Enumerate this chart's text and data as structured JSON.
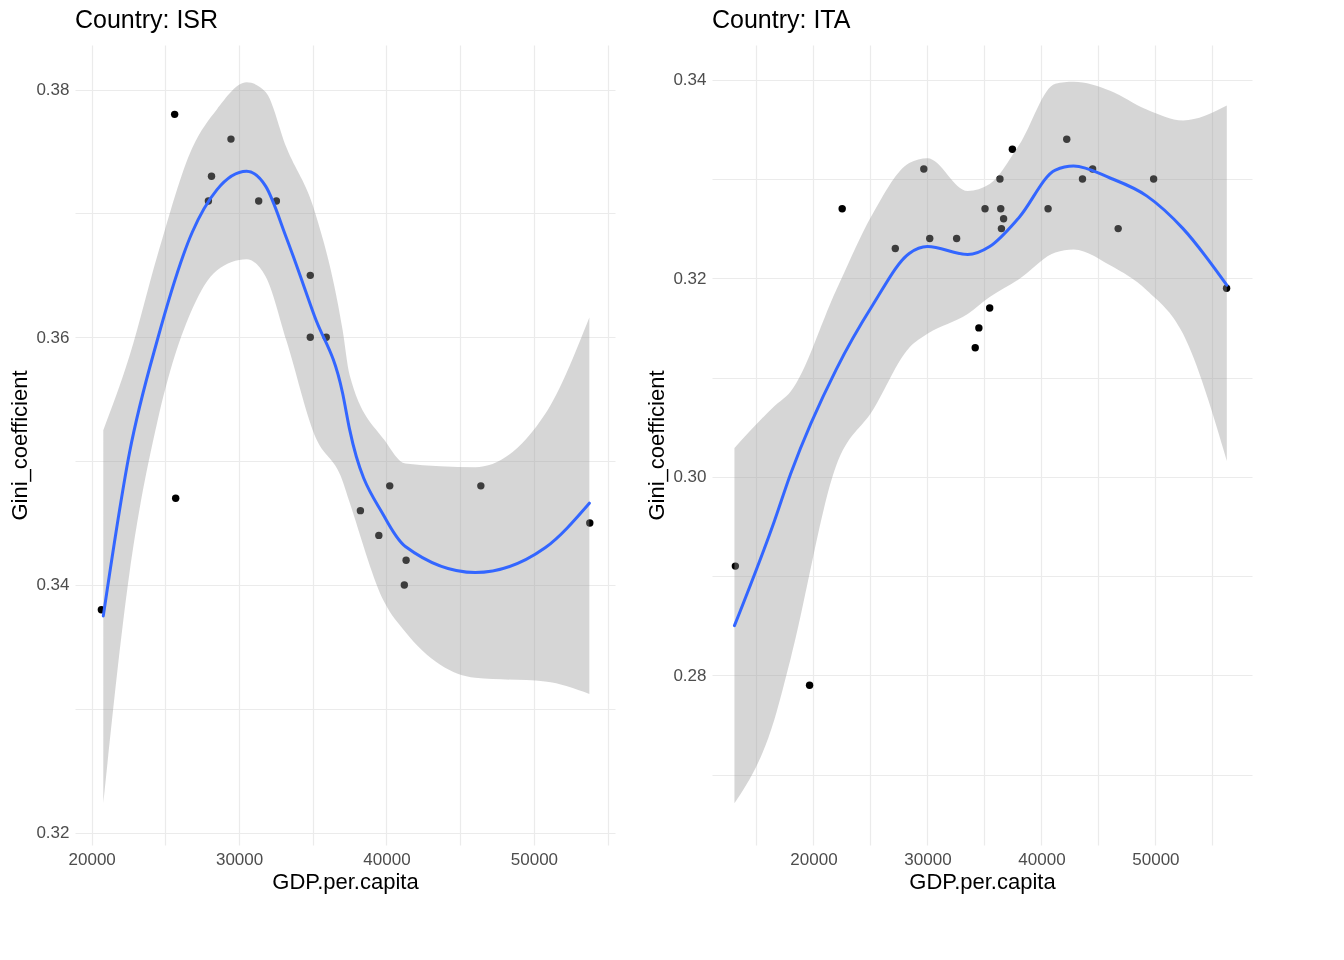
{
  "chart_data": [
    {
      "type": "scatter",
      "title": "Country: ISR",
      "xlabel": "GDP.per.capita",
      "ylabel": "Gini_coefficient",
      "grid": true,
      "xlim": [
        18870,
        55500
      ],
      "xticks": [
        20000,
        {
          "value": 25000,
          "label": null
        },
        30000,
        {
          "value": 35000,
          "label": null
        },
        40000,
        {
          "value": 45000,
          "label": null
        },
        50000,
        {
          "value": 55000,
          "label": null
        }
      ],
      "ylim": [
        0.319,
        0.3836
      ],
      "yticks": [
        0.32,
        {
          "value": 0.33,
          "label": null
        },
        0.34,
        {
          "value": 0.35,
          "label": null
        },
        0.36,
        {
          "value": 0.37,
          "label": null
        },
        0.38
      ],
      "series": [
        {
          "type": "scatter",
          "color": "#000000",
          "x": [
            20660,
            25630,
            25700,
            27920,
            28130,
            29450,
            31330,
            32530,
            34830,
            34830,
            35910,
            38230,
            39480,
            40220,
            41210,
            41330,
            46400,
            53790
          ],
          "values": [
            0.338,
            0.378,
            0.347,
            0.371,
            0.373,
            0.376,
            0.371,
            0.371,
            0.365,
            0.36,
            0.36,
            0.346,
            0.344,
            0.348,
            0.34,
            0.342,
            0.348,
            0.345
          ]
        },
        {
          "type": "line",
          "color": "#3366ff",
          "x": [
            20790,
            22570,
            24460,
            26830,
            28490,
            30510,
            31800,
            33220,
            35120,
            37020,
            37490,
            39860,
            41280,
            46020,
            50760,
            53760
          ],
          "values": [
            0.3375,
            0.3507,
            0.3598,
            0.3685,
            0.3719,
            0.3734,
            0.3722,
            0.368,
            0.3617,
            0.3555,
            0.3526,
            0.3455,
            0.3431,
            0.341,
            0.343,
            0.3466
          ],
          "lower": [
            0.3224,
            0.341,
            0.3532,
            0.3623,
            0.3654,
            0.3663,
            0.3649,
            0.3597,
            0.3521,
            0.3484,
            0.3467,
            0.3386,
            0.3362,
            0.3325,
            0.3322,
            0.3312
          ],
          "upper": [
            0.3525,
            0.3585,
            0.3666,
            0.3753,
            0.3784,
            0.3806,
            0.3798,
            0.3753,
            0.3702,
            0.3606,
            0.357,
            0.3517,
            0.3498,
            0.3495,
            0.3538,
            0.3616
          ]
        }
      ]
    },
    {
      "type": "scatter",
      "title": "Country: ITA",
      "xlabel": "GDP.per.capita",
      "ylabel": "Gini_coefficient",
      "grid": true,
      "xlim": [
        11100,
        58470
      ],
      "xticks": [
        {
          "value": 15000,
          "label": null
        },
        20000,
        {
          "value": 25000,
          "label": null
        },
        30000,
        {
          "value": 35000,
          "label": null
        },
        40000,
        {
          "value": 45000,
          "label": null
        },
        50000,
        {
          "value": 55000,
          "label": null
        }
      ],
      "ylim": [
        0.2629,
        0.3435
      ],
      "yticks": [
        {
          "value": 0.27,
          "label": null
        },
        0.28,
        {
          "value": 0.29,
          "label": null
        },
        {
          "value": 0.3,
          "label": "0.30"
        },
        {
          "value": 0.31,
          "label": null
        },
        0.32,
        {
          "value": 0.33,
          "label": null
        },
        0.34
      ],
      "series": [
        {
          "type": "scatter",
          "color": "#000000",
          "x": [
            13150,
            19660,
            22520,
            27180,
            29680,
            30200,
            32560,
            34190,
            34510,
            35050,
            35460,
            36360,
            36430,
            36490,
            36680,
            37450,
            40580,
            42220,
            43600,
            44490,
            46730,
            49840,
            56240
          ],
          "values": [
            0.291,
            0.279,
            0.327,
            0.323,
            0.331,
            0.324,
            0.324,
            0.313,
            0.315,
            0.327,
            0.317,
            0.33,
            0.327,
            0.325,
            0.326,
            0.333,
            0.327,
            0.334,
            0.33,
            0.331,
            0.325,
            0.33,
            0.319
          ]
        },
        {
          "type": "line",
          "color": "#3366ff",
          "x": [
            13070,
            16560,
            18000,
            21990,
            25200,
            28400,
            30000,
            33530,
            35460,
            38020,
            41220,
            42820,
            46020,
            49230,
            52420,
            56260
          ],
          "values": [
            0.285,
            0.2955,
            0.3003,
            0.3108,
            0.3173,
            0.3225,
            0.3232,
            0.3224,
            0.3232,
            0.3261,
            0.3309,
            0.3313,
            0.3301,
            0.3283,
            0.325,
            0.3193
          ],
          "lower": [
            0.2671,
            0.2755,
            0.2817,
            0.3011,
            0.3067,
            0.313,
            0.3144,
            0.3164,
            0.3181,
            0.3199,
            0.3226,
            0.3229,
            0.3213,
            0.3188,
            0.3144,
            0.3016
          ],
          "upper": [
            0.3029,
            0.3071,
            0.3086,
            0.3188,
            0.3265,
            0.3316,
            0.3321,
            0.3288,
            0.3295,
            0.3334,
            0.3396,
            0.3398,
            0.3389,
            0.337,
            0.3359,
            0.3374
          ]
        }
      ]
    }
  ]
}
